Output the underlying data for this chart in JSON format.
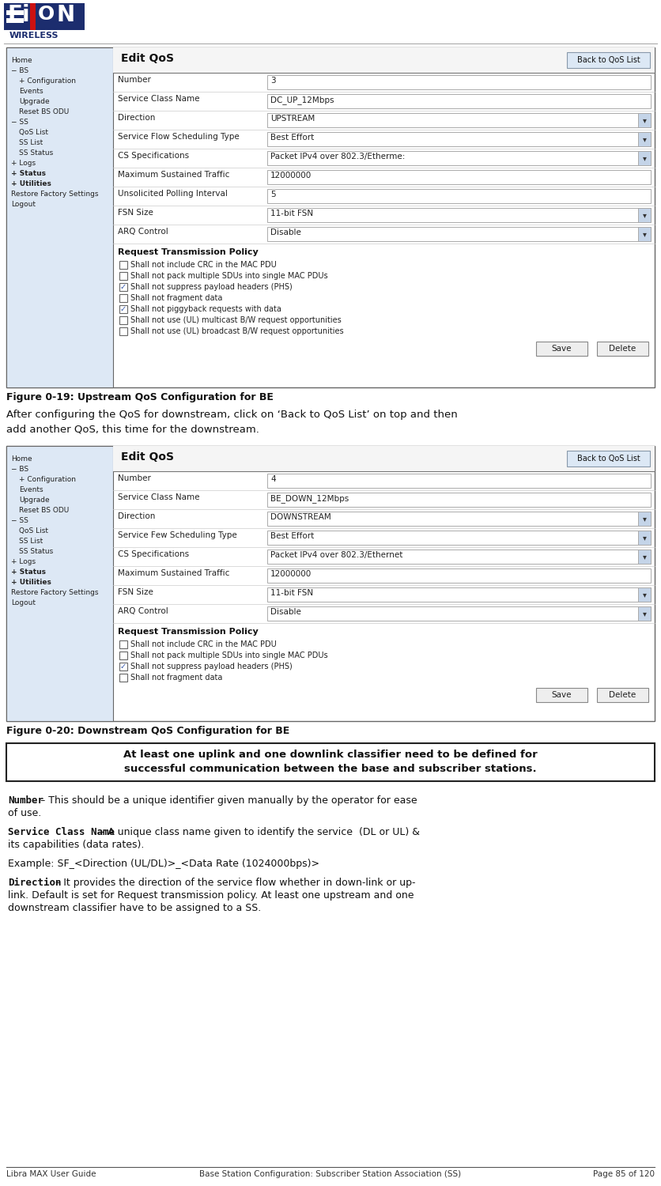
{
  "bg_color": "#ffffff",
  "fig1_title": "Edit QoS",
  "fig1_btn": "Back to QoS List",
  "fig1_caption": "Figure 0-19: Upstream QoS Configuration for BE",
  "fig1_fields": [
    [
      "Number",
      "3",
      false
    ],
    [
      "Service Class Name",
      "DC_UP_12Mbps",
      false
    ],
    [
      "Direction",
      "UPSTREAM",
      true
    ],
    [
      "Service Flow Scheduling Type",
      "Best Effort",
      true
    ],
    [
      "CS Specifications",
      "Packet IPv4 over 802.3/Etherme:",
      true
    ],
    [
      "Maximum Sustained Traffic",
      "12000000",
      false
    ],
    [
      "Unsolicited Polling Interval",
      "5",
      false
    ],
    [
      "FSN Size",
      "11-bit FSN",
      true
    ],
    [
      "ARQ Control",
      "Disable",
      true
    ]
  ],
  "fig1_policy_title": "Request Transmission Policy",
  "fig1_checkboxes": [
    [
      false,
      "Shall not include CRC in the MAC PDU"
    ],
    [
      false,
      "Shall not pack multiple SDUs into single MAC PDUs"
    ],
    [
      true,
      "Shall not suppress payload headers (PHS)"
    ],
    [
      false,
      "Shall not fragment data"
    ],
    [
      true,
      "Shall not piggyback requests with data"
    ],
    [
      false,
      "Shall not use (UL) multicast B/W request opportunities"
    ],
    [
      false,
      "Shall not use (UL) broadcast B/W request opportunities"
    ]
  ],
  "fig1_menu": [
    [
      "Home",
      false,
      0
    ],
    [
      "− BS",
      false,
      0
    ],
    [
      "+ Configuration",
      false,
      1
    ],
    [
      "Events",
      false,
      1
    ],
    [
      "Upgrade",
      false,
      1
    ],
    [
      "Reset BS ODU",
      false,
      1
    ],
    [
      "− SS",
      false,
      0
    ],
    [
      "QoS List",
      false,
      1
    ],
    [
      "SS List",
      false,
      1
    ],
    [
      "SS Status",
      false,
      1
    ],
    [
      "+ Logs",
      false,
      0
    ],
    [
      "+ Status",
      true,
      0
    ],
    [
      "+ Utilities",
      true,
      0
    ],
    [
      "Restore Factory Settings",
      false,
      0
    ],
    [
      "Logout",
      false,
      0
    ]
  ],
  "between_text": "After configuring the QoS for downstream, click on ‘Back to QoS List’ on top and then\nadd another QoS, this time for the downstream.",
  "fig2_title": "Edit QoS",
  "fig2_btn": "Back to QoS List",
  "fig2_caption": "Figure 0-20: Downstream QoS Configuration for BE",
  "fig2_fields": [
    [
      "Number",
      "4",
      false
    ],
    [
      "Service Class Name",
      "BE_DOWN_12Mbps",
      false
    ],
    [
      "Direction",
      "DOWNSTREAM",
      true
    ],
    [
      "Service Fеw Scheduling Type",
      "Best Effort",
      true
    ],
    [
      "CS Specifications",
      "Packet IPv4 over 802.3/Ethernet",
      true
    ],
    [
      "Maximum Sustained Traffic",
      "12000000",
      false
    ],
    [
      "FSN Size",
      "11-bit FSN",
      true
    ],
    [
      "ARQ Control",
      "Disable",
      true
    ]
  ],
  "fig2_policy_title": "Request Transmission Policy",
  "fig2_checkboxes": [
    [
      false,
      "Shall not include CRC in the MAC PDU"
    ],
    [
      false,
      "Shall not pack multiple SDUs into single MAC PDUs"
    ],
    [
      true,
      "Shall not suppress payload headers (PHS)"
    ],
    [
      false,
      "Shall not fragment data"
    ]
  ],
  "fig2_menu": [
    [
      "Home",
      false,
      0
    ],
    [
      "− BS",
      false,
      0
    ],
    [
      "+ Configuration",
      false,
      1
    ],
    [
      "Events",
      false,
      1
    ],
    [
      "Upgrade",
      false,
      1
    ],
    [
      "Reset BS ODU",
      false,
      1
    ],
    [
      "− SS",
      false,
      0
    ],
    [
      "QoS List",
      false,
      1
    ],
    [
      "SS List",
      false,
      1
    ],
    [
      "SS Status",
      false,
      1
    ],
    [
      "+ Logs",
      false,
      0
    ],
    [
      "+ Status",
      true,
      0
    ],
    [
      "+ Utilities",
      true,
      0
    ],
    [
      "Restore Factory Settings",
      false,
      0
    ],
    [
      "Logout",
      false,
      0
    ]
  ],
  "note_text": "At least one uplink and one downlink classifier need to be defined for\nsuccessful communication between the base and subscriber stations.",
  "body_paragraphs": [
    {
      "bold_part": "Number",
      "rest": " – This should be a unique identifier given manually by the operator for ease\nof use."
    },
    {
      "bold_part": "Service Class Name",
      "rest": " – A unique class name given to identify the service  (DL or UL) &\nits capabilities (data rates)."
    },
    {
      "bold_part": null,
      "rest": "Example: SF_<Direction (UL/DL)>_<Data Rate (1024000bps)>"
    },
    {
      "bold_part": "Direction",
      "rest": " – It provides the direction of the service flow whether in down-link or up-\nlink. Default is set for Request transmission policy. At least one upstream and one\ndownstream classifier have to be assigned to a SS."
    }
  ],
  "footer_left": "Libra MAX User Guide",
  "footer_center": "Base Station Configuration: Subscriber Station Association (SS)",
  "footer_right": "Page 85 of 120",
  "menu_bg": "#dde8f5",
  "checkbox_checked_color": "#3355aa",
  "note_border": "#222222",
  "note_bg": "#ffffff"
}
